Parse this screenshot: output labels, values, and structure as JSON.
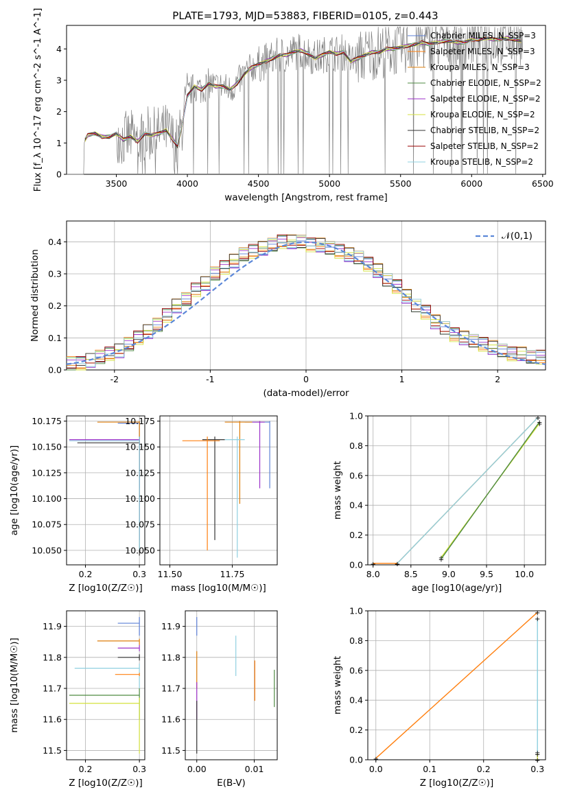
{
  "colors": [
    "#5b7fd6",
    "#ff7f0e",
    "#dd7c0a",
    "#4e8a42",
    "#9b2fc8",
    "#d4e23c",
    "#333333",
    "#9a0000",
    "#8fd0e0"
  ],
  "figure_title": "PLATE=1793, MJD=53883, FIBERID=0105, z=0.443",
  "chart_data": [
    {
      "type": "line",
      "title": "PLATE=1793, MJD=53883, FIBERID=0105, z=0.443",
      "xlabel": "wavelength [Angstrom, rest frame]",
      "ylabel": "Flux [f_λ 10^-17 erg cm^-2 s^-1 A^-1]",
      "xlim": [
        3150,
        6520
      ],
      "ylim": [
        0,
        4.75
      ],
      "xticks": [
        3500,
        4000,
        4500,
        5000,
        5500,
        6000,
        6500
      ],
      "yticks": [
        0,
        1,
        2,
        3,
        4
      ],
      "grid": false,
      "legend": "top-right",
      "series": [
        {
          "name": "Chabrier MILES, N_SSP=3"
        },
        {
          "name": "Salpeter MILES, N_SSP=3"
        },
        {
          "name": "Kroupa MILES, N_SSP=3"
        },
        {
          "name": "Chabrier ELODIE, N_SSP=2"
        },
        {
          "name": "Salpeter ELODIE, N_SSP=2"
        },
        {
          "name": "Kroupa ELODIE, N_SSP=2"
        },
        {
          "name": "Chabrier STELIB, N_SSP=2"
        },
        {
          "name": "Salpeter STELIB, N_SSP=2"
        },
        {
          "name": "Kroupa STELIB, N_SSP=2"
        }
      ],
      "model_points": [
        [
          3280,
          1.1
        ],
        [
          3300,
          1.25
        ],
        [
          3350,
          1.3
        ],
        [
          3400,
          1.2
        ],
        [
          3450,
          1.2
        ],
        [
          3500,
          1.3
        ],
        [
          3550,
          1.1
        ],
        [
          3600,
          1.2
        ],
        [
          3650,
          1.05
        ],
        [
          3700,
          1.3
        ],
        [
          3750,
          1.25
        ],
        [
          3800,
          1.3
        ],
        [
          3850,
          1.4
        ],
        [
          3900,
          1.1
        ],
        [
          3930,
          0.9
        ],
        [
          3960,
          1.5
        ],
        [
          4000,
          2.5
        ],
        [
          4050,
          2.8
        ],
        [
          4100,
          2.7
        ],
        [
          4150,
          2.9
        ],
        [
          4200,
          2.8
        ],
        [
          4250,
          2.8
        ],
        [
          4300,
          2.7
        ],
        [
          4350,
          2.9
        ],
        [
          4400,
          3.2
        ],
        [
          4450,
          3.4
        ],
        [
          4500,
          3.5
        ],
        [
          4550,
          3.6
        ],
        [
          4600,
          3.7
        ],
        [
          4650,
          3.8
        ],
        [
          4700,
          3.8
        ],
        [
          4750,
          3.9
        ],
        [
          4800,
          3.95
        ],
        [
          4850,
          3.85
        ],
        [
          4900,
          3.7
        ],
        [
          4950,
          3.8
        ],
        [
          5000,
          3.9
        ],
        [
          5050,
          3.85
        ],
        [
          5100,
          3.9
        ],
        [
          5150,
          3.6
        ],
        [
          5200,
          3.7
        ],
        [
          5250,
          3.8
        ],
        [
          5300,
          3.9
        ],
        [
          5350,
          3.9
        ],
        [
          5400,
          4.0
        ],
        [
          5450,
          4.0
        ],
        [
          5500,
          4.05
        ],
        [
          5550,
          4.1
        ],
        [
          5600,
          4.15
        ],
        [
          5650,
          4.2
        ],
        [
          5700,
          4.15
        ],
        [
          5750,
          4.2
        ],
        [
          5800,
          4.25
        ],
        [
          5850,
          4.25
        ],
        [
          5900,
          4.2
        ],
        [
          5950,
          4.2
        ],
        [
          6000,
          4.3
        ],
        [
          6050,
          4.3
        ],
        [
          6100,
          4.35
        ],
        [
          6150,
          4.3
        ],
        [
          6200,
          4.3
        ],
        [
          6250,
          4.35
        ],
        [
          6300,
          4.3
        ],
        [
          6350,
          4.25
        ]
      ]
    },
    {
      "type": "histogram",
      "xlabel": "(data-model)/error",
      "ylabel": "Normed distribution",
      "xlim": [
        -2.5,
        2.5
      ],
      "ylim": [
        0,
        0.465
      ],
      "xticks": [
        -2,
        -1,
        0,
        1,
        2
      ],
      "yticks": [
        0,
        0.1,
        0.2,
        0.3,
        0.4
      ],
      "grid": true,
      "legend": "top-right",
      "reference_curve": {
        "name": "𝒩(0,1)",
        "mean": 0,
        "sigma": 1
      },
      "bin_edges_start": -2.5,
      "bin_width": 0.1,
      "envelope": [
        0.02,
        0.02,
        0.03,
        0.04,
        0.05,
        0.06,
        0.08,
        0.1,
        0.12,
        0.14,
        0.17,
        0.2,
        0.22,
        0.25,
        0.27,
        0.3,
        0.32,
        0.34,
        0.36,
        0.37,
        0.38,
        0.39,
        0.4,
        0.4,
        0.4,
        0.39,
        0.39,
        0.38,
        0.37,
        0.36,
        0.35,
        0.33,
        0.31,
        0.28,
        0.26,
        0.23,
        0.2,
        0.18,
        0.15,
        0.13,
        0.11,
        0.1,
        0.09,
        0.08,
        0.07,
        0.06,
        0.05,
        0.05,
        0.04,
        0.04
      ]
    },
    {
      "type": "scatter",
      "xlabel": "Z [log10(Z/Z☉)]",
      "ylabel": "age  [log10(age/yr)]",
      "xlim": [
        0.165,
        0.31
      ],
      "ylim": [
        10.036,
        10.18
      ],
      "xticks": [
        0.2,
        0.3
      ],
      "yticks": [
        10.05,
        10.075,
        10.1,
        10.125,
        10.15,
        10.175
      ],
      "grid": true,
      "points": [
        {
          "x": 0.3,
          "xlo": 0.26,
          "xhi": 0.3,
          "y": 10.173,
          "ylo": 10.11,
          "yhi": 10.175
        },
        {
          "x": 0.3,
          "xlo": 0.222,
          "xhi": 0.3,
          "y": 10.174,
          "ylo": 10.12,
          "yhi": 10.175
        },
        {
          "x": 0.3,
          "xlo": 0.17,
          "xhi": 0.3,
          "y": 10.157,
          "ylo": 10.06,
          "yhi": 10.16
        },
        {
          "x": 0.3,
          "xlo": 0.185,
          "xhi": 0.3,
          "y": 10.154,
          "ylo": 10.045,
          "yhi": 10.16
        },
        {
          "x": 0.3,
          "xlo": 0.17,
          "xhi": 0.3,
          "y": 10.156,
          "ylo": 10.05,
          "yhi": 10.16
        }
      ]
    },
    {
      "type": "scatter",
      "xlabel": "mass [log10(M/M☉)]",
      "ylabel": "",
      "xlim": [
        11.46,
        11.93
      ],
      "ylim": [
        10.036,
        10.18
      ],
      "xticks": [
        11.5,
        11.75
      ],
      "yticks": [
        10.05,
        10.075,
        10.1,
        10.125,
        10.15,
        10.175
      ],
      "grid": true,
      "points": [
        {
          "x": 11.9,
          "xlo": 11.8,
          "xhi": 11.9,
          "y": 10.174,
          "ylo": 10.11,
          "yhi": 10.175
        },
        {
          "x": 11.78,
          "xlo": 11.72,
          "xhi": 11.83,
          "y": 10.174,
          "ylo": 10.095,
          "yhi": 10.175
        },
        {
          "x": 11.86,
          "xlo": 11.83,
          "xhi": 11.88,
          "y": 10.174,
          "ylo": 10.11,
          "yhi": 10.175
        },
        {
          "x": 11.68,
          "xlo": 11.63,
          "xhi": 11.72,
          "y": 10.157,
          "ylo": 10.06,
          "yhi": 10.16
        },
        {
          "x": 11.77,
          "xlo": 11.72,
          "xhi": 11.8,
          "y": 10.157,
          "ylo": 10.043,
          "yhi": 10.16
        },
        {
          "x": 11.65,
          "xlo": 11.55,
          "xhi": 11.7,
          "y": 10.156,
          "ylo": 10.05,
          "yhi": 10.16
        }
      ]
    },
    {
      "type": "line",
      "xlabel": "age  [log10(age/yr)]",
      "ylabel": "mass weight",
      "xlim": [
        7.93,
        10.28
      ],
      "ylim": [
        0,
        1
      ],
      "xticks": [
        8.0,
        8.5,
        9.0,
        9.5,
        10.0
      ],
      "yticks": [
        0.0,
        0.2,
        0.4,
        0.6,
        0.8,
        1.0
      ],
      "grid": true,
      "series": [
        {
          "x": [
            8.0,
            8.32,
            10.18
          ],
          "y": [
            0.01,
            0.01,
            0.99
          ]
        },
        {
          "x": [
            8.32,
            10.18
          ],
          "y": [
            0.01,
            0.99
          ]
        },
        {
          "x": [
            8.9,
            10.2
          ],
          "y": [
            0.05,
            0.95
          ]
        },
        {
          "x": [
            8.9,
            10.2
          ],
          "y": [
            0.04,
            0.96
          ]
        }
      ]
    },
    {
      "type": "scatter",
      "xlabel": "Z [log10(Z/Z☉)]",
      "ylabel": "mass [log10(M/M☉)]",
      "xlim": [
        0.165,
        0.31
      ],
      "ylim": [
        11.47,
        11.95
      ],
      "xticks": [
        0.2,
        0.3
      ],
      "yticks": [
        11.5,
        11.6,
        11.7,
        11.8,
        11.9
      ],
      "grid": true,
      "points": [
        {
          "x": 0.3,
          "xlo": 0.26,
          "xhi": 0.3,
          "y": 11.91,
          "ylo": 11.87,
          "yhi": 11.93
        },
        {
          "x": 0.3,
          "xlo": 0.222,
          "xhi": 0.3,
          "y": 11.853,
          "ylo": 11.84,
          "yhi": 11.86
        },
        {
          "x": 0.3,
          "xlo": 0.26,
          "xhi": 0.3,
          "y": 11.83,
          "ylo": 11.82,
          "yhi": 11.84
        },
        {
          "x": 0.3,
          "xlo": 0.26,
          "xhi": 0.3,
          "y": 11.8,
          "ylo": 11.79,
          "yhi": 11.81
        },
        {
          "x": 0.3,
          "xlo": 0.18,
          "xhi": 0.3,
          "y": 11.765,
          "ylo": 11.7,
          "yhi": 11.78
        },
        {
          "x": 0.3,
          "xlo": 0.255,
          "xhi": 0.3,
          "y": 11.745,
          "ylo": 11.74,
          "yhi": 11.75
        },
        {
          "x": 0.3,
          "xlo": 0.17,
          "xhi": 0.3,
          "y": 11.678,
          "ylo": 11.6,
          "yhi": 11.7
        },
        {
          "x": 0.3,
          "xlo": 0.17,
          "xhi": 0.3,
          "y": 11.652,
          "ylo": 11.49,
          "yhi": 11.67
        }
      ]
    },
    {
      "type": "scatter",
      "xlabel": "E(B-V)",
      "ylabel": "",
      "xlim": [
        -0.002,
        0.014
      ],
      "ylim": [
        11.47,
        11.95
      ],
      "xticks": [
        0.0,
        0.01
      ],
      "yticks": [
        11.5,
        11.6,
        11.7,
        11.8,
        11.9
      ],
      "grid": true,
      "points": [
        {
          "x": 0.0,
          "ylo": 11.87,
          "yhi": 11.93
        },
        {
          "x": 0.0,
          "ylo": 11.7,
          "yhi": 11.82
        },
        {
          "x": 0.0,
          "ylo": 11.6,
          "yhi": 11.72
        },
        {
          "x": 0.0,
          "ylo": 11.49,
          "yhi": 11.66
        },
        {
          "x": 0.0068,
          "ylo": 11.74,
          "yhi": 11.87
        },
        {
          "x": 0.0101,
          "ylo": 11.66,
          "yhi": 11.79
        },
        {
          "x": 0.0135,
          "ylo": 11.64,
          "yhi": 11.76
        }
      ]
    },
    {
      "type": "line",
      "xlabel": "Z [log10(Z/Z☉)]",
      "ylabel": "mass weight",
      "xlim": [
        -0.015,
        0.315
      ],
      "ylim": [
        0,
        1
      ],
      "xticks": [
        0.0,
        0.1,
        0.2,
        0.3
      ],
      "yticks": [
        0.0,
        0.2,
        0.4,
        0.6,
        0.8,
        1.0
      ],
      "grid": true,
      "series": [
        {
          "x": [
            0.0,
            0.3
          ],
          "y": [
            0.01,
            0.99
          ]
        },
        {
          "x": [
            0.3,
            0.3
          ],
          "y": [
            0.05,
            0.95
          ]
        },
        {
          "x": [
            0.3,
            0.3
          ],
          "y": [
            0.0,
            0.04
          ]
        }
      ]
    }
  ]
}
